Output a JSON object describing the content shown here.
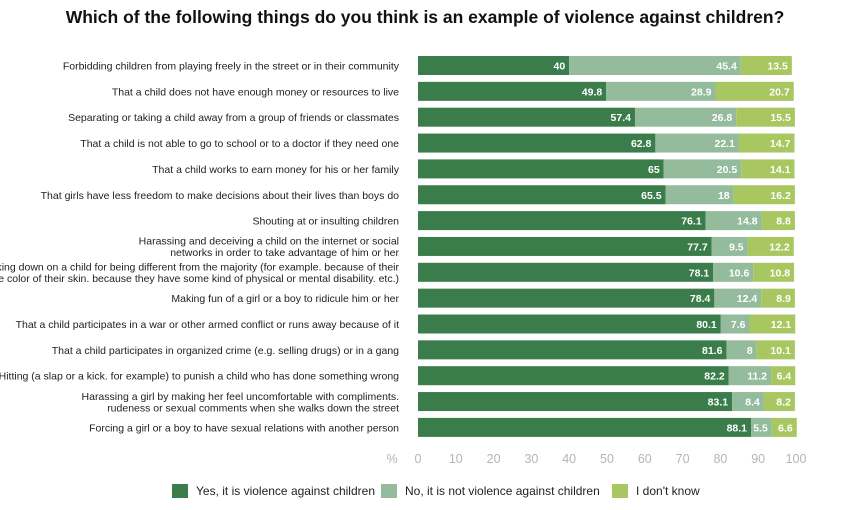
{
  "chart_data": {
    "type": "bar",
    "orientation": "horizontal",
    "stacked": true,
    "title": "Which of the following things do you think is an example of violence against children?",
    "categories": [
      "Forbidding children from playing freely in the street or in their community",
      "That a child does not have enough money or resources to live",
      "Separating or taking a child away from a group of friends or classmates",
      "That a child is not able to go to school or to a doctor if they need one",
      "That a child works to earn money for his or her family",
      "That girls have less freedom to make decisions about their lives than boys do",
      "Shouting at or insulting children",
      "Harassing and deceiving a child on the internet or social networks in order to take advantage of him or her",
      "Looking down on a child for being different from the majority (for example. because of their religion. the color of their skin. because they have some kind of physical or mental disability. etc.)",
      "Making fun of a girl or a boy to ridicule him or her",
      "That a child participates in a war or other armed conflict or runs away because of it",
      "That a child participates in organized crime (e.g. selling drugs) or in a gang",
      "Hitting (a slap or a kick. for example) to punish a child who has done something wrong",
      "Harassing a girl by making her feel uncomfortable with compliments. rudeness or sexual comments when she walks down the street",
      "Forcing a girl or a boy to have sexual relations with another person"
    ],
    "category_lines": [
      [
        "Forbidding children from playing freely in the street or in their community"
      ],
      [
        "That a child does not have enough money or resources to live"
      ],
      [
        "Separating or taking a child away from a group of friends or classmates"
      ],
      [
        "That a child is not able to go to school or to a doctor if they need one"
      ],
      [
        "That a child works to earn money for his or her family"
      ],
      [
        "That girls have less freedom to make decisions about their lives than boys do"
      ],
      [
        "Shouting at or insulting children"
      ],
      [
        "Harassing and deceiving a child on the internet or social",
        "networks in order to take advantage of him or her"
      ],
      [
        "Looking down on a child for being different from the majority (for example. because of their",
        "religion. the color of their skin. because they have some kind of physical or mental disability. etc.)"
      ],
      [
        "Making fun of a girl or a boy to ridicule him or her"
      ],
      [
        "That a child participates in a war or other armed conflict or runs away because of it"
      ],
      [
        "That a child participates in organized crime (e.g. selling drugs) or in a gang"
      ],
      [
        "Hitting (a slap or a kick. for example) to punish a child who has done something wrong"
      ],
      [
        "Harassing a girl by making her feel uncomfortable with compliments.",
        "rudeness or sexual comments when she walks down the street"
      ],
      [
        "Forcing a girl or a boy to have sexual relations with another person"
      ]
    ],
    "series": [
      {
        "name": "Yes, it is violence against children",
        "color": "#3a7d4a",
        "values": [
          40,
          49.8,
          57.4,
          62.8,
          65,
          65.5,
          76.1,
          77.7,
          78.1,
          78.4,
          80.1,
          81.6,
          82.2,
          83.1,
          88.1
        ]
      },
      {
        "name": "No, it is not violence against children",
        "color": "#93bb9c",
        "values": [
          45.4,
          28.9,
          26.8,
          22.1,
          20.5,
          18,
          14.8,
          9.5,
          10.6,
          12.4,
          7.6,
          8,
          11.2,
          8.4,
          5.5
        ]
      },
      {
        "name": "I don't know",
        "color": "#a8c760",
        "values": [
          13.5,
          20.7,
          15.5,
          14.7,
          14.1,
          16.2,
          8.8,
          12.2,
          10.8,
          8.9,
          12.1,
          10.1,
          6.4,
          8.2,
          6.6
        ]
      }
    ],
    "x_axis": {
      "unit_label": "%",
      "ticks": [
        0,
        10,
        20,
        30,
        40,
        50,
        60,
        70,
        80,
        90,
        100
      ],
      "range": [
        0,
        100
      ]
    },
    "grid": false,
    "legend_position": "bottom"
  }
}
